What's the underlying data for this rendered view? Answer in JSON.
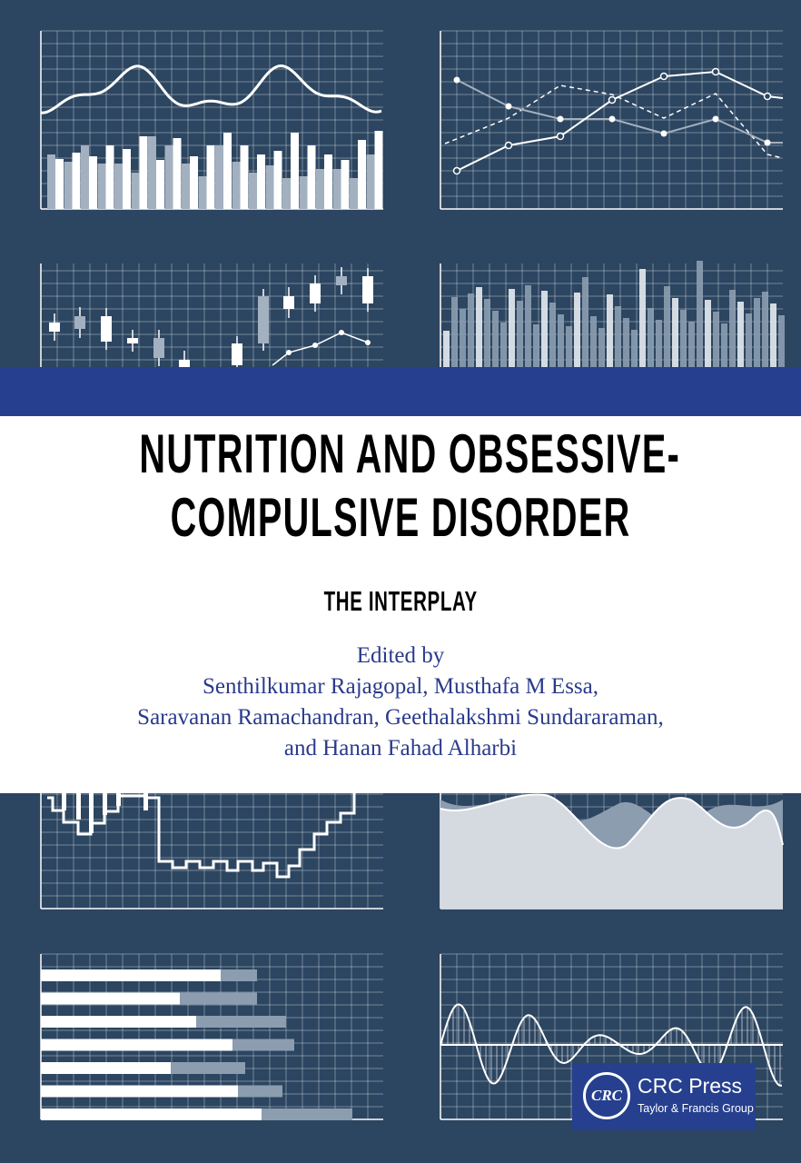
{
  "cover": {
    "title_line1": "NUTRITION AND OBSESSIVE-",
    "title_line2": "COMPULSIVE DISORDER",
    "subtitle": "THE INTERPLAY",
    "edited_by": "Edited by",
    "editors_line1": "Senthilkumar Rajagopal, Musthafa M Essa,",
    "editors_line2": "Saravanan Ramachandran, Geethalakshmi Sundararaman,",
    "editors_line3": "and Hanan Fahad Alharbi"
  },
  "publisher": {
    "logo_text": "CRC",
    "name": "CRC Press",
    "group": "Taylor & Francis Group"
  },
  "colors": {
    "background": "#2c4560",
    "band_blue": "#26408f",
    "credits_text": "#2a3a8c"
  }
}
